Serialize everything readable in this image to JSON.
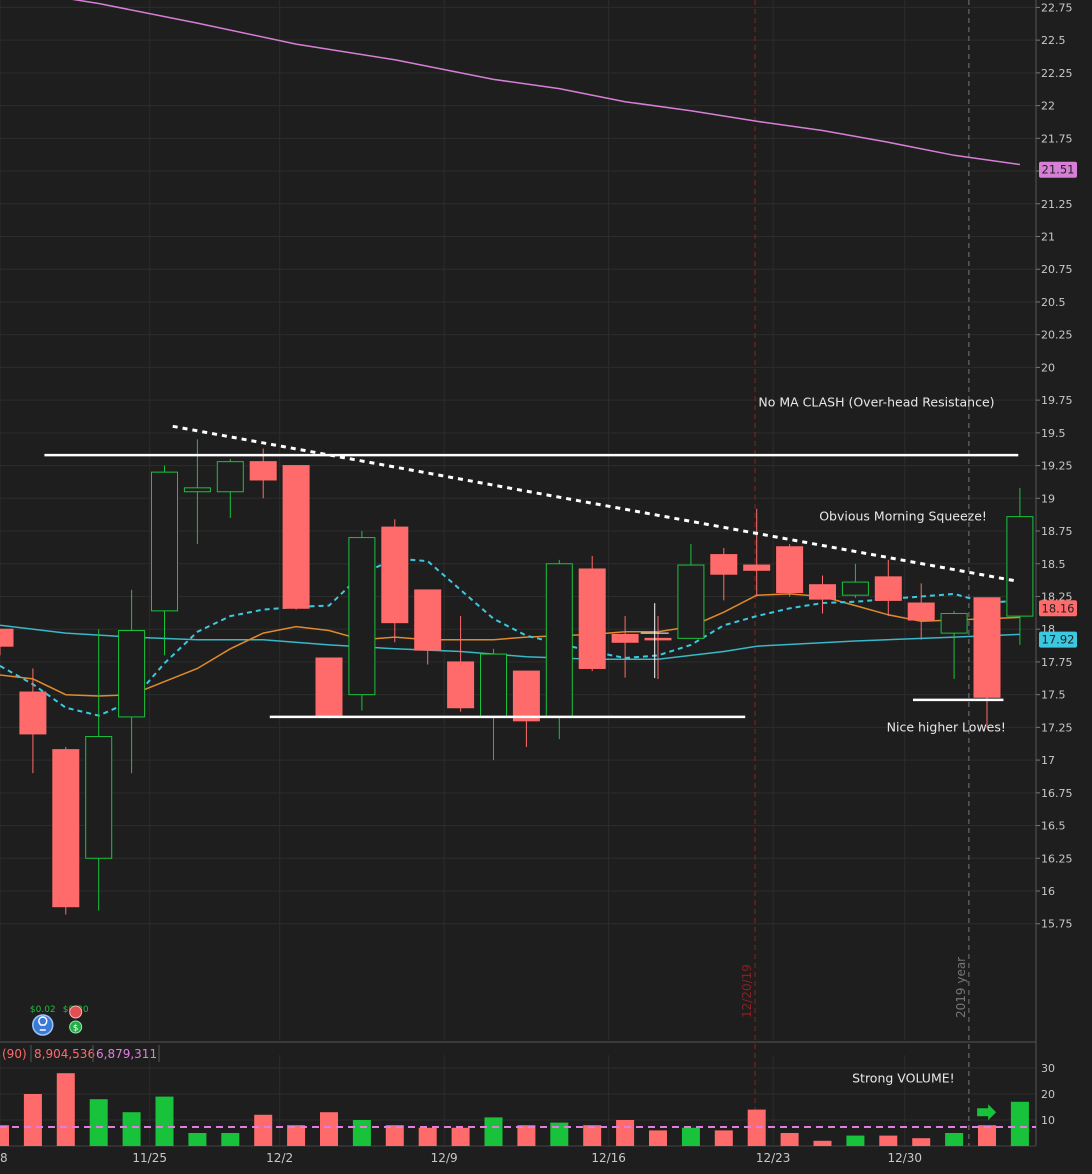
{
  "chart_data": {
    "type": "candlestick",
    "price_axis": {
      "ticks": [
        "22.75",
        "22.5",
        "22.25",
        "22",
        "21.75",
        "21.5",
        "21.25",
        "21",
        "20.75",
        "20.5",
        "20.25",
        "20",
        "19.75",
        "19.5",
        "19.25",
        "19",
        "18.75",
        "18.5",
        "18.25",
        "18",
        "17.75",
        "17.5",
        "17.25",
        "17",
        "16.75",
        "16.5",
        "16.25",
        "16",
        "15.75"
      ],
      "ylim": [
        15.6,
        22.9
      ]
    },
    "volume_axis": {
      "ticks": [
        "30",
        "20",
        "10"
      ],
      "ylim": [
        0,
        32
      ]
    },
    "x_labels": [
      {
        "label": "8",
        "index": 0
      },
      {
        "label": "11/25",
        "index": 4.55
      },
      {
        "label": "12/2",
        "index": 8.5
      },
      {
        "label": "12/9",
        "index": 13.5
      },
      {
        "label": "12/16",
        "index": 18.5
      },
      {
        "label": "12/23",
        "index": 23.5
      },
      {
        "label": "12/30",
        "index": 27.5
      }
    ],
    "candles": [
      {
        "i": 0,
        "o": 18.0,
        "h": 18.0,
        "l": 17.8,
        "c": 17.87,
        "v": 8
      },
      {
        "i": 1,
        "o": 17.52,
        "h": 17.7,
        "l": 16.9,
        "c": 17.2,
        "v": 20
      },
      {
        "i": 2,
        "o": 17.08,
        "h": 17.1,
        "l": 15.82,
        "c": 15.88,
        "v": 28
      },
      {
        "i": 3,
        "o": 16.25,
        "h": 18.0,
        "l": 15.85,
        "c": 17.18,
        "v": 18
      },
      {
        "i": 4,
        "o": 17.33,
        "h": 18.3,
        "l": 16.9,
        "c": 17.99,
        "v": 13
      },
      {
        "i": 5,
        "o": 18.14,
        "h": 19.25,
        "l": 17.8,
        "c": 19.2,
        "v": 19
      },
      {
        "i": 6,
        "o": 19.05,
        "h": 19.45,
        "l": 18.65,
        "c": 19.08,
        "v": 5
      },
      {
        "i": 7,
        "o": 19.05,
        "h": 19.3,
        "l": 18.85,
        "c": 19.28,
        "v": 5
      },
      {
        "i": 8,
        "o": 19.28,
        "h": 19.38,
        "l": 19.0,
        "c": 19.14,
        "v": 12
      },
      {
        "i": 9,
        "o": 19.25,
        "h": 19.25,
        "l": 18.15,
        "c": 18.16,
        "v": 8
      },
      {
        "i": 10,
        "o": 17.78,
        "h": 17.78,
        "l": 17.32,
        "c": 17.34,
        "v": 13
      },
      {
        "i": 11,
        "o": 17.5,
        "h": 18.75,
        "l": 17.38,
        "c": 18.7,
        "v": 10
      },
      {
        "i": 12,
        "o": 18.78,
        "h": 18.84,
        "l": 17.9,
        "c": 18.05,
        "v": 8
      },
      {
        "i": 13,
        "o": 18.3,
        "h": 18.3,
        "l": 17.73,
        "c": 17.84,
        "v": 7
      },
      {
        "i": 14,
        "o": 17.75,
        "h": 18.1,
        "l": 17.37,
        "c": 17.4,
        "v": 7
      },
      {
        "i": 15,
        "o": 17.33,
        "h": 17.85,
        "l": 17.0,
        "c": 17.81,
        "v": 11
      },
      {
        "i": 16,
        "o": 17.68,
        "h": 17.68,
        "l": 17.1,
        "c": 17.3,
        "v": 8
      },
      {
        "i": 17,
        "o": 17.33,
        "h": 18.53,
        "l": 17.16,
        "c": 18.5,
        "v": 9
      },
      {
        "i": 18,
        "o": 18.46,
        "h": 18.56,
        "l": 17.68,
        "c": 17.7,
        "v": 8
      },
      {
        "i": 19,
        "o": 17.96,
        "h": 18.1,
        "l": 17.63,
        "c": 17.9,
        "v": 10
      },
      {
        "i": 20,
        "o": 17.93,
        "h": 18.1,
        "l": 17.62,
        "c": 17.92,
        "v": 6
      },
      {
        "i": 21,
        "o": 17.93,
        "h": 18.65,
        "l": 17.93,
        "c": 18.49,
        "v": 7
      },
      {
        "i": 22,
        "o": 18.57,
        "h": 18.62,
        "l": 18.22,
        "c": 18.42,
        "v": 6
      },
      {
        "i": 23,
        "o": 18.49,
        "h": 18.92,
        "l": 18.25,
        "c": 18.45,
        "v": 14
      },
      {
        "i": 24,
        "o": 18.63,
        "h": 18.65,
        "l": 18.25,
        "c": 18.28,
        "v": 5
      },
      {
        "i": 25,
        "o": 18.34,
        "h": 18.41,
        "l": 18.12,
        "c": 18.23,
        "v": 2
      },
      {
        "i": 26,
        "o": 18.26,
        "h": 18.5,
        "l": 18.24,
        "c": 18.36,
        "v": 4
      },
      {
        "i": 27,
        "o": 18.4,
        "h": 18.53,
        "l": 18.1,
        "c": 18.22,
        "v": 4
      },
      {
        "i": 28,
        "o": 18.2,
        "h": 18.35,
        "l": 17.92,
        "c": 18.07,
        "v": 3
      },
      {
        "i": 29,
        "o": 17.97,
        "h": 18.14,
        "l": 17.62,
        "c": 18.12,
        "v": 5
      },
      {
        "i": 30,
        "o": 18.24,
        "h": 18.24,
        "l": 17.25,
        "c": 17.48,
        "v": 8
      },
      {
        "i": 31,
        "o": 18.1,
        "h": 19.08,
        "l": 17.88,
        "c": 18.86,
        "v": 17
      }
    ],
    "ma_series": [
      {
        "name": "MA200",
        "color": "#d77fd7",
        "style": "solid",
        "points": [
          [
            0,
            22.9
          ],
          [
            3,
            22.78
          ],
          [
            6,
            22.63
          ],
          [
            9,
            22.47
          ],
          [
            12,
            22.35
          ],
          [
            15,
            22.2
          ],
          [
            17,
            22.13
          ],
          [
            19,
            22.03
          ],
          [
            21,
            21.96
          ],
          [
            23,
            21.88
          ],
          [
            25,
            21.81
          ],
          [
            27,
            21.72
          ],
          [
            29,
            21.62
          ],
          [
            31,
            21.55
          ]
        ]
      },
      {
        "name": "MA50",
        "color": "#38b8c8",
        "style": "solid",
        "points": [
          [
            0,
            18.03
          ],
          [
            2,
            17.97
          ],
          [
            4,
            17.94
          ],
          [
            6,
            17.92
          ],
          [
            8,
            17.92
          ],
          [
            10,
            17.88
          ],
          [
            12,
            17.85
          ],
          [
            14,
            17.83
          ],
          [
            16,
            17.79
          ],
          [
            18,
            17.77
          ],
          [
            20,
            17.77
          ],
          [
            22,
            17.83
          ],
          [
            23,
            17.87
          ],
          [
            26,
            17.91
          ],
          [
            29,
            17.94
          ],
          [
            31,
            17.96
          ]
        ]
      },
      {
        "name": "MA20",
        "color": "#e08a2a",
        "style": "solid",
        "points": [
          [
            0,
            17.65
          ],
          [
            1,
            17.62
          ],
          [
            2,
            17.5
          ],
          [
            3,
            17.49
          ],
          [
            4,
            17.5
          ],
          [
            5,
            17.6
          ],
          [
            6,
            17.7
          ],
          [
            7,
            17.85
          ],
          [
            8,
            17.97
          ],
          [
            9,
            18.02
          ],
          [
            10,
            17.99
          ],
          [
            11,
            17.92
          ],
          [
            12,
            17.94
          ],
          [
            13,
            17.92
          ],
          [
            14,
            17.92
          ],
          [
            15,
            17.92
          ],
          [
            16,
            17.94
          ],
          [
            17,
            17.95
          ],
          [
            18,
            17.96
          ],
          [
            19,
            17.98
          ],
          [
            20,
            17.98
          ],
          [
            21,
            18.02
          ],
          [
            22,
            18.13
          ],
          [
            23,
            18.26
          ],
          [
            24,
            18.27
          ],
          [
            25,
            18.25
          ],
          [
            26,
            18.18
          ],
          [
            27,
            18.11
          ],
          [
            28,
            18.06
          ],
          [
            29,
            18.07
          ],
          [
            30,
            18.08
          ],
          [
            31,
            18.09
          ]
        ]
      },
      {
        "name": "MA9",
        "color": "#3cc8e0",
        "style": "dashed",
        "points": [
          [
            0,
            17.72
          ],
          [
            1,
            17.58
          ],
          [
            2,
            17.4
          ],
          [
            3,
            17.34
          ],
          [
            4,
            17.45
          ],
          [
            5,
            17.74
          ],
          [
            6,
            17.98
          ],
          [
            7,
            18.1
          ],
          [
            8,
            18.15
          ],
          [
            9,
            18.17
          ],
          [
            10,
            18.18
          ],
          [
            11,
            18.42
          ],
          [
            12,
            18.54
          ],
          [
            13,
            18.52
          ],
          [
            14,
            18.3
          ],
          [
            15,
            18.08
          ],
          [
            16,
            17.95
          ],
          [
            17,
            17.89
          ],
          [
            18,
            17.83
          ],
          [
            19,
            17.78
          ],
          [
            20,
            17.8
          ],
          [
            21,
            17.88
          ],
          [
            22,
            18.03
          ],
          [
            23,
            18.1
          ],
          [
            24,
            18.16
          ],
          [
            25,
            18.2
          ],
          [
            26,
            18.21
          ],
          [
            27,
            18.23
          ],
          [
            28,
            18.25
          ],
          [
            29,
            18.27
          ],
          [
            30,
            18.2
          ],
          [
            31,
            18.22
          ]
        ]
      }
    ],
    "price_labels": [
      {
        "value": "21.51",
        "bg": "#d77fd7",
        "fg": "#222222",
        "price": 21.51
      },
      {
        "value": "18.16",
        "bg": "#ff6b6b",
        "fg": "#222222",
        "price": 18.16
      },
      {
        "value": "17.92",
        "bg": "#3cc8e0",
        "fg": "#222222",
        "price": 17.92
      }
    ],
    "annotations": [
      {
        "text": "No MA CLASH (Over-head Resistance)",
        "i": 23.05,
        "price": 19.7
      },
      {
        "text": "Obvious Morning Squeeze!",
        "i": 24.9,
        "price": 18.83
      },
      {
        "text": "Nice higher Lowes!",
        "i": 26.95,
        "price": 17.22
      },
      {
        "text": "Strong VOLUME!",
        "i": 25.9,
        "vol": 24.5
      }
    ],
    "lines": [
      {
        "type": "solid",
        "from": [
          1.35,
          19.33
        ],
        "to": [
          30.95,
          19.33
        ],
        "color": "#ffffff"
      },
      {
        "type": "solid",
        "from": [
          8.2,
          17.33
        ],
        "to": [
          22.65,
          17.33
        ],
        "color": "#ffffff"
      },
      {
        "type": "solid",
        "from": [
          27.75,
          17.46
        ],
        "to": [
          30.5,
          17.46
        ],
        "color": "#ffffff"
      },
      {
        "type": "dotted",
        "from": [
          5.25,
          19.55
        ],
        "to": [
          30.85,
          18.37
        ],
        "color": "#ffffff"
      }
    ],
    "vertical_markers": [
      {
        "label": "12/20/19",
        "i": 22.95,
        "color": "#8a2222"
      },
      {
        "label": "2019 year",
        "i": 29.45,
        "color": "#777777"
      }
    ],
    "events": [
      {
        "label": "$0.02",
        "i": 1.3,
        "icon": "bulb-icon",
        "color": "#3a7bd5"
      },
      {
        "label": "$0.30",
        "i": 2.3,
        "icon": "phone-icon",
        "color": "#e05050"
      },
      {
        "label": "$",
        "i": 2.3,
        "icon": "dividend-icon",
        "color": "#22aa44"
      }
    ],
    "volume_stats": [
      {
        "text": "(90)",
        "color": "#ff6b6b"
      },
      {
        "text": "8,904,536",
        "color": "#ff6b6b"
      },
      {
        "text": "6,879,311",
        "color": "#e07ee0"
      }
    ],
    "volume_avg": 7.3,
    "colors": {
      "up": "#19c23b",
      "down": "#ff6b6b",
      "background": "#1e1e1e",
      "grid": "#2c2c2c"
    }
  }
}
